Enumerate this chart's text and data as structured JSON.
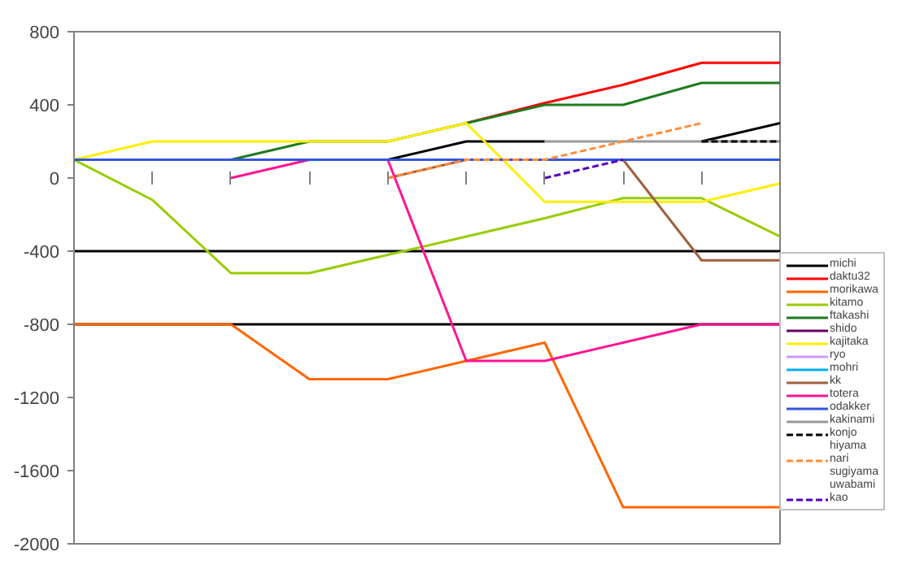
{
  "chart_data": {
    "type": "line",
    "categories": [
      null,
      null,
      null,
      null,
      null,
      null,
      null,
      null,
      null,
      null
    ],
    "ylim": [
      -2000,
      800
    ],
    "yticks": [
      800,
      400,
      0,
      -400,
      -800,
      -1200,
      -1600,
      -2000
    ],
    "grid": false,
    "legend": "right",
    "marker": "none",
    "line_style": "solid",
    "ref_lines": [
      {
        "axis": "y",
        "value": -400,
        "color": "#000000"
      },
      {
        "axis": "y",
        "value": -800,
        "color": "#000000"
      }
    ],
    "series": [
      {
        "name": "michi",
        "color": "#000000",
        "values": [
          null,
          null,
          null,
          null,
          100,
          200,
          200,
          null,
          200,
          300
        ]
      },
      {
        "name": "daktu32",
        "color": "#ff0000",
        "values": [
          null,
          null,
          null,
          null,
          null,
          300,
          410,
          510,
          630,
          630
        ]
      },
      {
        "name": "morikawa",
        "color": "#ff6600",
        "values": [
          -800,
          -800,
          -800,
          -1100,
          -1100,
          -1000,
          -900,
          -1800,
          -1800,
          -1800
        ]
      },
      {
        "name": "kitamo",
        "color": "#99cc00",
        "values": [
          100,
          -120,
          -520,
          -520,
          -420,
          -320,
          -220,
          -110,
          -110,
          -320
        ]
      },
      {
        "name": "ftakashi",
        "color": "#1e7a1e",
        "values": [
          null,
          null,
          100,
          200,
          200,
          300,
          400,
          400,
          520,
          520
        ]
      },
      {
        "name": "shido",
        "color": "#660066",
        "values": [
          null,
          null,
          null,
          null,
          null,
          null,
          null,
          null,
          null,
          null
        ]
      },
      {
        "name": "kajitaka",
        "color": "#ffee00",
        "values": [
          100,
          200,
          200,
          200,
          200,
          300,
          -130,
          -130,
          -130,
          -30
        ]
      },
      {
        "name": "ryo",
        "color": "#cc99ff",
        "values": [
          null,
          null,
          null,
          null,
          null,
          null,
          null,
          null,
          null,
          null
        ]
      },
      {
        "name": "mohri",
        "color": "#00b0f0",
        "values": [
          null,
          null,
          null,
          null,
          null,
          null,
          null,
          null,
          null,
          null
        ]
      },
      {
        "name": "kk",
        "color": "#a0603a",
        "values": [
          null,
          null,
          null,
          null,
          0,
          100,
          100,
          100,
          -450,
          -450
        ]
      },
      {
        "name": "totera",
        "color": "#ff1493",
        "values": [
          null,
          null,
          0,
          100,
          100,
          -1000,
          -1000,
          -900,
          -800,
          -800
        ]
      },
      {
        "name": "odakker",
        "color": "#3355dd",
        "values": [
          100,
          100,
          100,
          100,
          100,
          100,
          100,
          100,
          100,
          100
        ]
      },
      {
        "name": "kakinami",
        "color": "#999999",
        "values": [
          null,
          null,
          null,
          null,
          null,
          null,
          200,
          200,
          200,
          200
        ]
      },
      {
        "name": "konjo",
        "color": "#000000",
        "line_style": "dashed",
        "values": [
          null,
          null,
          null,
          null,
          null,
          null,
          null,
          null,
          200,
          200
        ]
      },
      {
        "name": "hiyama",
        "values": [
          null,
          null,
          null,
          null,
          null,
          null,
          null,
          null,
          null,
          null
        ]
      },
      {
        "name": "nari",
        "color": "#ff8c3a",
        "line_style": "dashed",
        "values": [
          null,
          null,
          null,
          null,
          0,
          100,
          100,
          200,
          300,
          null
        ]
      },
      {
        "name": "sugiyama",
        "values": [
          null,
          null,
          null,
          null,
          null,
          null,
          null,
          null,
          null,
          null
        ]
      },
      {
        "name": "uwabami",
        "values": [
          null,
          null,
          null,
          null,
          null,
          null,
          null,
          null,
          null,
          null
        ]
      },
      {
        "name": "kao",
        "color": "#5500bb",
        "line_style": "dashed",
        "values": [
          null,
          null,
          null,
          null,
          null,
          null,
          0,
          100,
          null,
          null
        ]
      }
    ]
  }
}
